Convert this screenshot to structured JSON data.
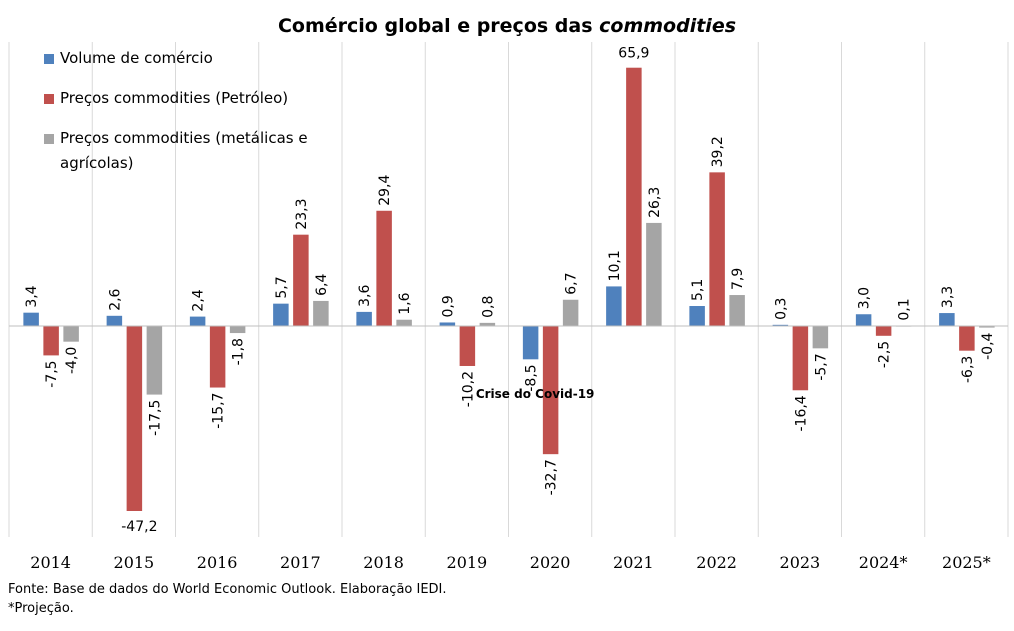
{
  "chart_data": {
    "type": "bar",
    "title": "Comércio global e preços das",
    "title_italic": "commodities",
    "categories": [
      "2014",
      "2015",
      "2016",
      "2017",
      "2018",
      "2019",
      "2020",
      "2021",
      "2022",
      "2023",
      "2024*",
      "2025*"
    ],
    "series": [
      {
        "name": "Volume de comércio",
        "color": "#4f81bd",
        "values": [
          3.4,
          2.6,
          2.4,
          5.7,
          3.6,
          0.9,
          -8.5,
          10.1,
          5.1,
          0.3,
          3.0,
          3.3
        ],
        "labels": [
          "3,4",
          "2,6",
          "2,4",
          "5,7",
          "3,6",
          "0,9",
          "-8,5",
          "10,1",
          "5,1",
          "0,3",
          "3,0",
          "3,3"
        ]
      },
      {
        "name": "Preços commodities (Petróleo)",
        "color": "#c0504d",
        "values": [
          -7.5,
          -47.2,
          -15.7,
          23.3,
          29.4,
          -10.2,
          -32.7,
          65.9,
          39.2,
          -16.4,
          -2.5,
          -6.3
        ],
        "labels": [
          "-7,5",
          "-47,2",
          "-15,7",
          "23,3",
          "29,4",
          "-10,2",
          "-32,7",
          "65,9",
          "39,2",
          "-16,4",
          "-2,5",
          "-6,3"
        ]
      },
      {
        "name": "Preços commodities (metálicas e agrícolas)",
        "legend_lines": [
          "Preços commodities (metálicas e",
          "agrícolas)"
        ],
        "color": "#a5a5a5",
        "values": [
          -4.0,
          -17.5,
          -1.8,
          6.4,
          1.6,
          0.8,
          6.7,
          26.3,
          7.9,
          -5.7,
          0.1,
          -0.4
        ],
        "labels": [
          "-4,0",
          "-17,5",
          "-1,8",
          "6,4",
          "1,6",
          "0,8",
          "6,7",
          "26,3",
          "7,9",
          "-5,7",
          "0,1",
          "-0,4"
        ]
      }
    ],
    "annotation": {
      "text": "Crise do Covid-19",
      "category": "2020"
    },
    "legend_position": "top-left",
    "grid": "vertical-category-separators"
  },
  "footer": {
    "source": "Fonte: Base de dados do World Economic Outlook. Elaboração IEDI.",
    "note": "*Projeção."
  }
}
